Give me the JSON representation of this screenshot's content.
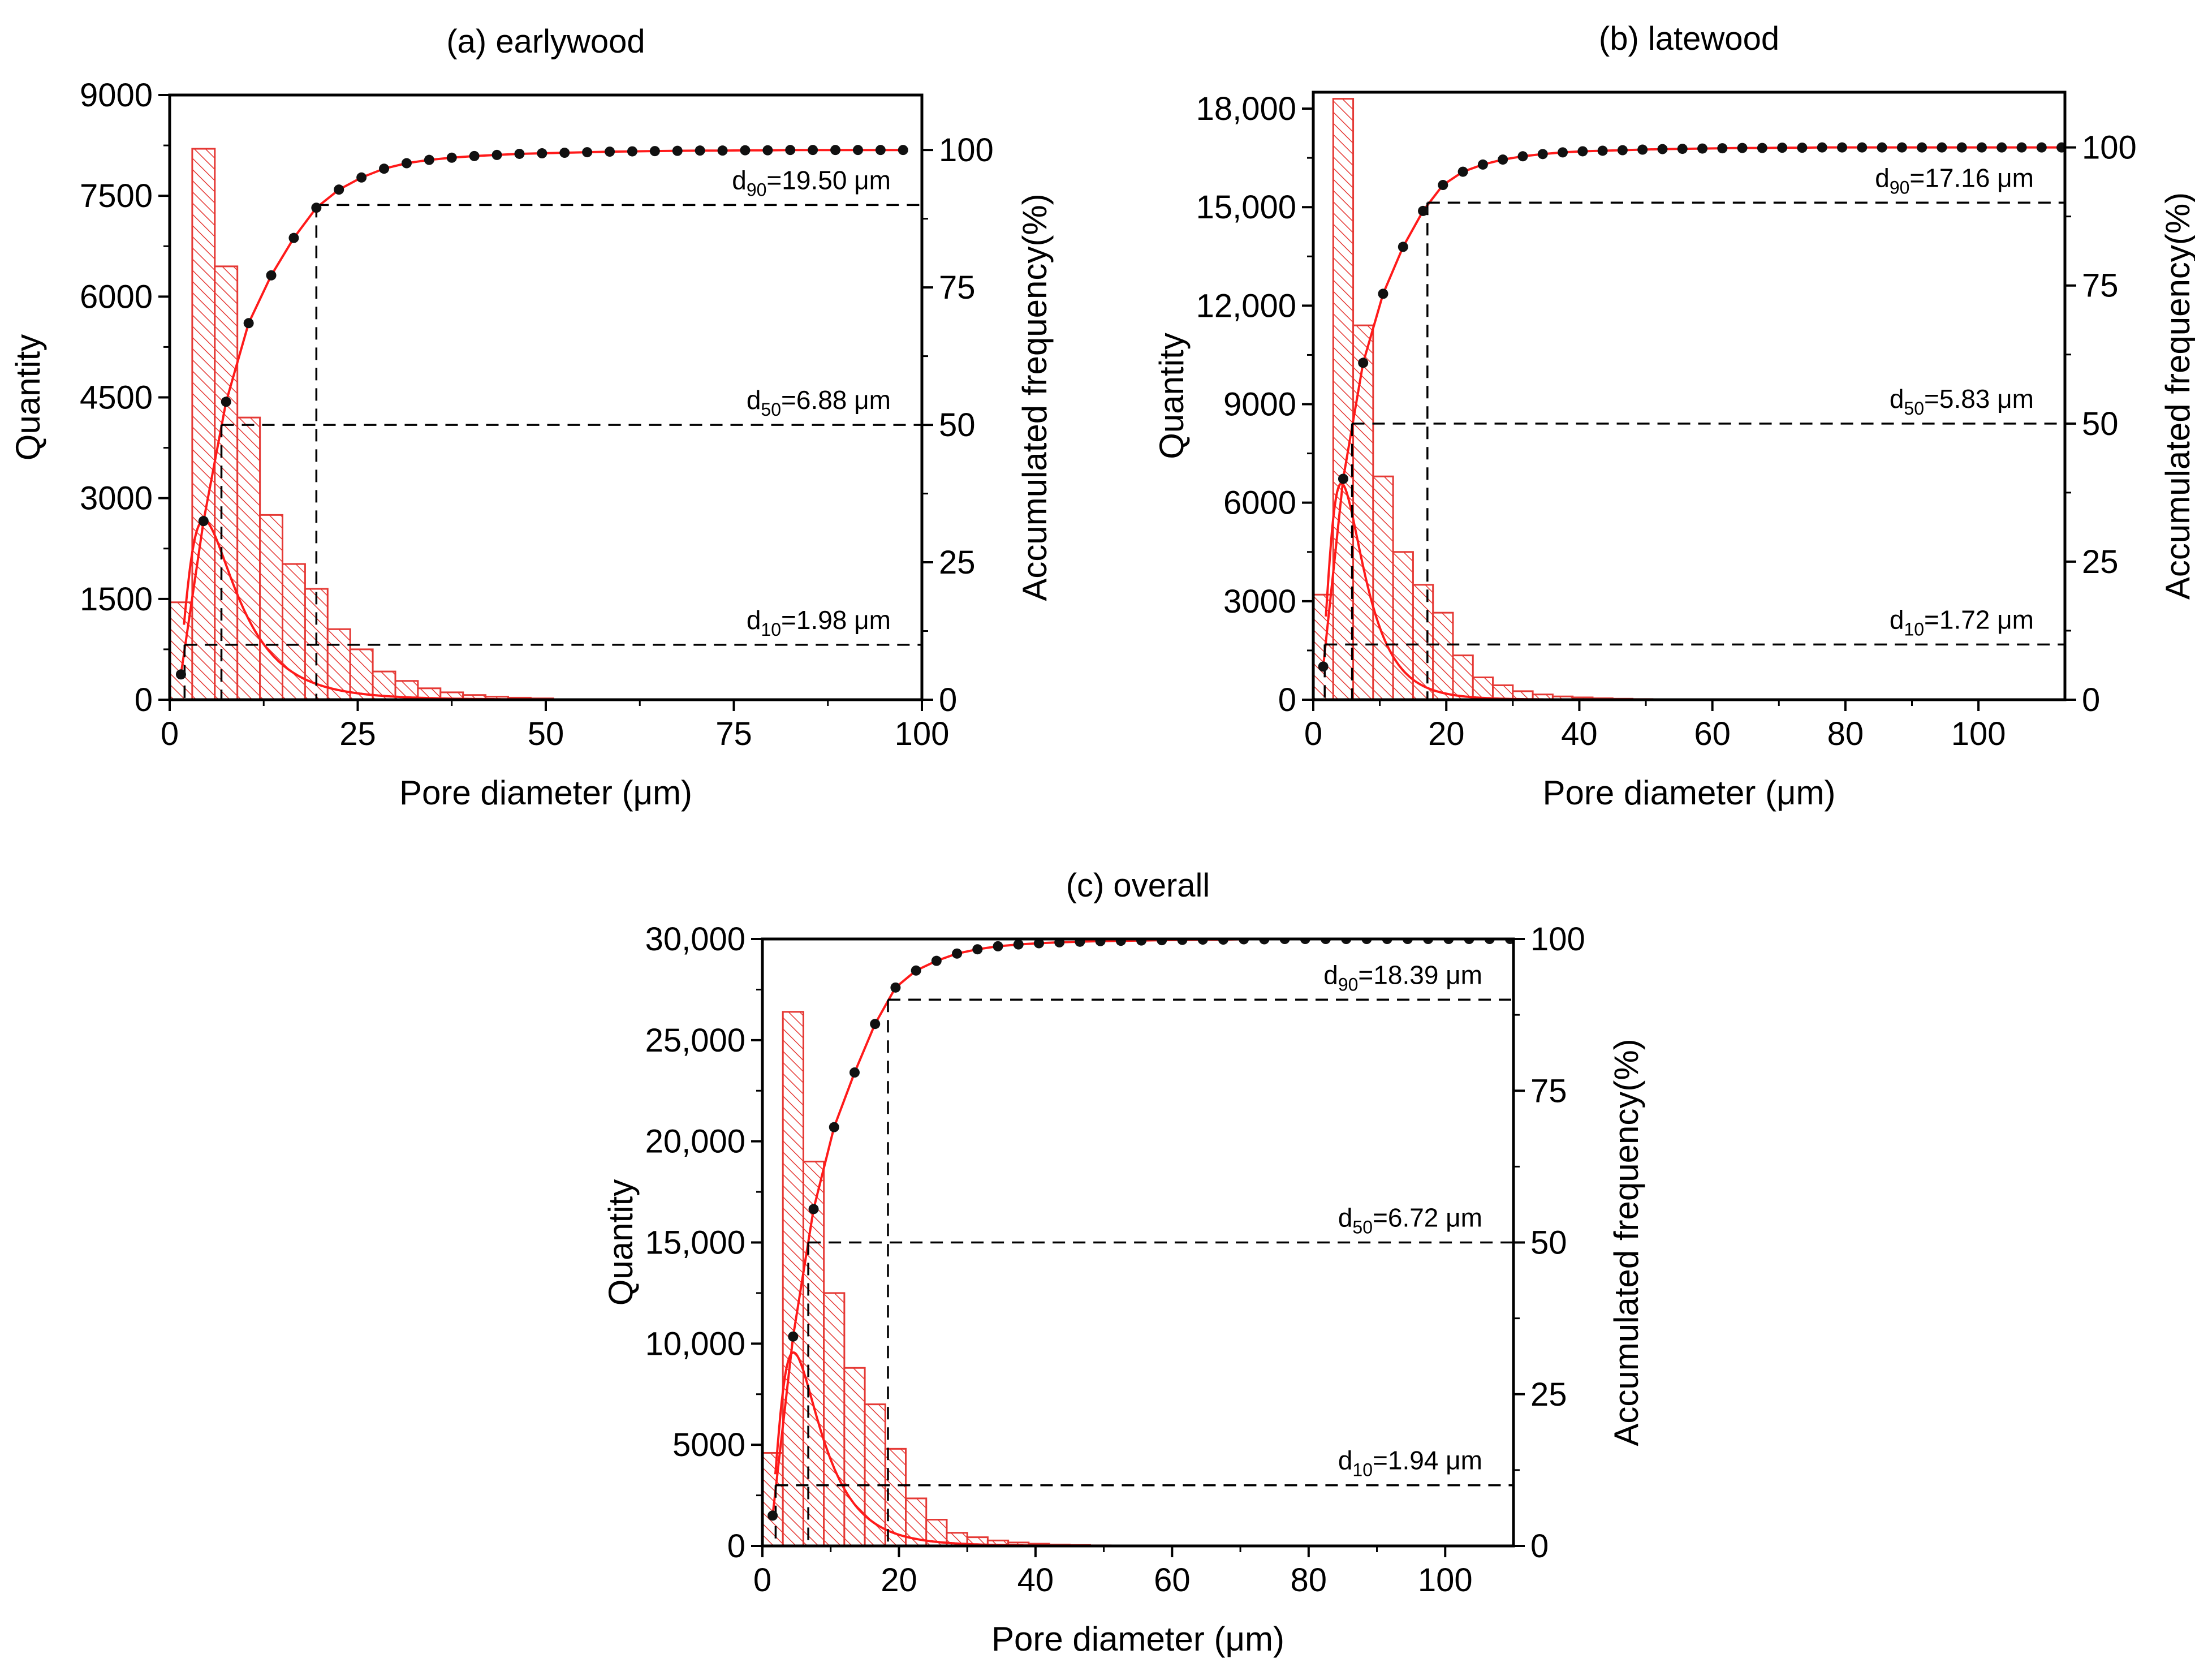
{
  "colors": {
    "bar": "#e53935",
    "curve": "#ff1a1a",
    "dots": "#111111",
    "axes": "#000000",
    "dashed": "#000000"
  },
  "chart_data": [
    {
      "id": "a",
      "type": "bar",
      "title": "(a) earlywood",
      "xlabel": "Pore diameter (μm)",
      "ylabel": "Quantity",
      "y2label": "Accumulated frequency(%)",
      "xlim": [
        0,
        100
      ],
      "ylim": [
        0,
        9000
      ],
      "y2lim": [
        0,
        110
      ],
      "xticks": [
        0,
        25,
        50,
        75,
        100
      ],
      "yticks": [
        0,
        1500,
        3000,
        4500,
        6000,
        7500,
        9000
      ],
      "ytick_labels": [
        "0",
        "1500",
        "3000",
        "4500",
        "6000",
        "7500",
        "9000"
      ],
      "y2ticks": [
        0,
        25,
        50,
        75,
        100
      ],
      "bin_width": 3,
      "bins": [
        0,
        3,
        6,
        9,
        12,
        15,
        18,
        21,
        24,
        27,
        30,
        33,
        36,
        39,
        42,
        45,
        48
      ],
      "counts": [
        1450,
        8200,
        6450,
        4200,
        2750,
        2020,
        1650,
        1050,
        750,
        420,
        280,
        170,
        110,
        70,
        45,
        30,
        20
      ],
      "fit": {
        "type": "lognormal",
        "mu": 1.95,
        "sigma": 0.66,
        "scale": 25000
      },
      "cumulative": {
        "x": [
          1.5,
          4.5,
          7.5,
          10.5,
          13.5,
          16.5,
          19.5,
          22.5,
          25.5,
          28.5,
          31.5,
          34.5,
          37.5,
          40.5,
          43.5,
          46.5,
          49.5,
          52.5,
          55.5,
          58.5,
          61.5,
          64.5,
          67.5,
          70.5,
          73.5,
          76.5,
          79.5,
          82.5,
          85.5,
          88.5,
          91.5,
          94.5,
          97.5
        ],
        "y": [
          4.6,
          32.5,
          54.2,
          68.5,
          77.2,
          84.0,
          89.5,
          92.8,
          95.0,
          96.6,
          97.6,
          98.2,
          98.6,
          98.9,
          99.1,
          99.3,
          99.4,
          99.5,
          99.6,
          99.7,
          99.75,
          99.8,
          99.85,
          99.9,
          99.9,
          99.95,
          99.95,
          100,
          100,
          100,
          100,
          100,
          100
        ]
      },
      "markers": [
        {
          "name": "d10",
          "label_pre": "d",
          "label_sub": "10",
          "label_post": "=1.98 μm",
          "x": 1.98,
          "y": 10
        },
        {
          "name": "d50",
          "label_pre": "d",
          "label_sub": "50",
          "label_post": "=6.88 μm",
          "x": 6.88,
          "y": 50
        },
        {
          "name": "d90",
          "label_pre": "d",
          "label_sub": "90",
          "label_post": "=19.50 μm",
          "x": 19.5,
          "y": 90
        }
      ]
    },
    {
      "id": "b",
      "type": "bar",
      "title": "(b) latewood",
      "xlabel": "Pore diameter (μm)",
      "ylabel": "Quantity",
      "y2label": "Accumulated frequency(%)",
      "xlim": [
        0,
        113
      ],
      "ylim": [
        0,
        18500
      ],
      "y2lim": [
        0,
        110
      ],
      "xticks": [
        0,
        20,
        40,
        60,
        80,
        100
      ],
      "yticks": [
        0,
        3000,
        6000,
        9000,
        12000,
        15000,
        18000
      ],
      "ytick_labels": [
        "0",
        "3000",
        "6000",
        "9000",
        "12,000",
        "15,000",
        "18,000"
      ],
      "y2ticks": [
        0,
        25,
        50,
        75,
        100
      ],
      "bin_width": 3,
      "bins": [
        0,
        3,
        6,
        9,
        12,
        15,
        18,
        21,
        24,
        27,
        30,
        33,
        36,
        39,
        42,
        45,
        48
      ],
      "counts": [
        3200,
        18300,
        11400,
        6800,
        4500,
        3500,
        2650,
        1350,
        680,
        440,
        260,
        160,
        100,
        70,
        45,
        30,
        20
      ],
      "fit": {
        "type": "lognormal",
        "mu": 1.78,
        "sigma": 0.58,
        "scale": 48000
      },
      "cumulative": {
        "x": [
          1.5,
          4.5,
          7.5,
          10.5,
          13.5,
          16.5,
          19.5,
          22.5,
          25.5,
          28.5,
          31.5,
          34.5,
          37.5,
          40.5,
          43.5,
          46.5,
          49.5,
          52.5,
          55.5,
          58.5,
          61.5,
          64.5,
          67.5,
          70.5,
          73.5,
          76.5,
          79.5,
          82.5,
          85.5,
          88.5,
          91.5,
          94.5,
          97.5,
          100.5,
          103.5,
          106.5,
          109.5,
          112.5
        ],
        "y": [
          6.0,
          40.0,
          61.0,
          73.5,
          82.0,
          88.5,
          93.2,
          95.6,
          96.9,
          97.8,
          98.4,
          98.8,
          99.1,
          99.3,
          99.4,
          99.5,
          99.6,
          99.7,
          99.75,
          99.8,
          99.85,
          99.9,
          99.9,
          99.95,
          99.95,
          100,
          100,
          100,
          100,
          100,
          100,
          100,
          100,
          100,
          100,
          100,
          100,
          100
        ]
      },
      "markers": [
        {
          "name": "d10",
          "label_pre": "d",
          "label_sub": "10",
          "label_post": "=1.72 μm",
          "x": 1.72,
          "y": 10
        },
        {
          "name": "d50",
          "label_pre": "d",
          "label_sub": "50",
          "label_post": "=5.83 μm",
          "x": 5.83,
          "y": 50
        },
        {
          "name": "d90",
          "label_pre": "d",
          "label_sub": "90",
          "label_post": "=17.16 μm",
          "x": 17.16,
          "y": 90
        }
      ]
    },
    {
      "id": "c",
      "type": "bar",
      "title": "(c) overall",
      "xlabel": "Pore diameter (μm)",
      "ylabel": "Quantity",
      "y2label": "Accumulated frequency(%)",
      "xlim": [
        0,
        110
      ],
      "ylim": [
        0,
        30000
      ],
      "y2lim": [
        0,
        100
      ],
      "xticks": [
        0,
        20,
        40,
        60,
        80,
        100
      ],
      "yticks": [
        0,
        5000,
        10000,
        15000,
        20000,
        25000,
        30000
      ],
      "ytick_labels": [
        "0",
        "5000",
        "10,000",
        "15,000",
        "20,000",
        "25,000",
        "30,000"
      ],
      "y2ticks": [
        0,
        25,
        50,
        75,
        100
      ],
      "bin_width": 3,
      "bins": [
        0,
        3,
        6,
        9,
        12,
        15,
        18,
        21,
        24,
        27,
        30,
        33,
        36,
        39,
        42,
        45,
        48
      ],
      "counts": [
        4600,
        26400,
        19000,
        12500,
        8800,
        7000,
        4800,
        2350,
        1300,
        650,
        430,
        270,
        170,
        110,
        70,
        45,
        30
      ],
      "fit": {
        "type": "lognormal",
        "mu": 1.9,
        "sigma": 0.62,
        "scale": 82000
      },
      "cumulative": {
        "x": [
          1.5,
          4.5,
          7.5,
          10.5,
          13.5,
          16.5,
          19.5,
          22.5,
          25.5,
          28.5,
          31.5,
          34.5,
          37.5,
          40.5,
          43.5,
          46.5,
          49.5,
          52.5,
          55.5,
          58.5,
          61.5,
          64.5,
          67.5,
          70.5,
          73.5,
          76.5,
          79.5,
          82.5,
          85.5,
          88.5,
          91.5,
          94.5,
          97.5,
          100.5,
          103.5,
          106.5,
          109.5
        ],
        "y": [
          5.0,
          34.5,
          55.5,
          69.0,
          78.0,
          86.0,
          92.0,
          94.8,
          96.4,
          97.6,
          98.3,
          98.8,
          99.1,
          99.3,
          99.45,
          99.55,
          99.65,
          99.7,
          99.75,
          99.8,
          99.85,
          99.9,
          99.9,
          99.95,
          99.95,
          100,
          100,
          100,
          100,
          100,
          100,
          100,
          100,
          100,
          100,
          100,
          100
        ]
      },
      "markers": [
        {
          "name": "d10",
          "label_pre": "d",
          "label_sub": "10",
          "label_post": "=1.94 μm",
          "x": 1.94,
          "y": 10
        },
        {
          "name": "d50",
          "label_pre": "d",
          "label_sub": "50",
          "label_post": "=6.72 μm",
          "x": 6.72,
          "y": 50
        },
        {
          "name": "d90",
          "label_pre": "d",
          "label_sub": "90",
          "label_post": "=18.39 μm",
          "x": 18.39,
          "y": 90
        }
      ]
    }
  ]
}
